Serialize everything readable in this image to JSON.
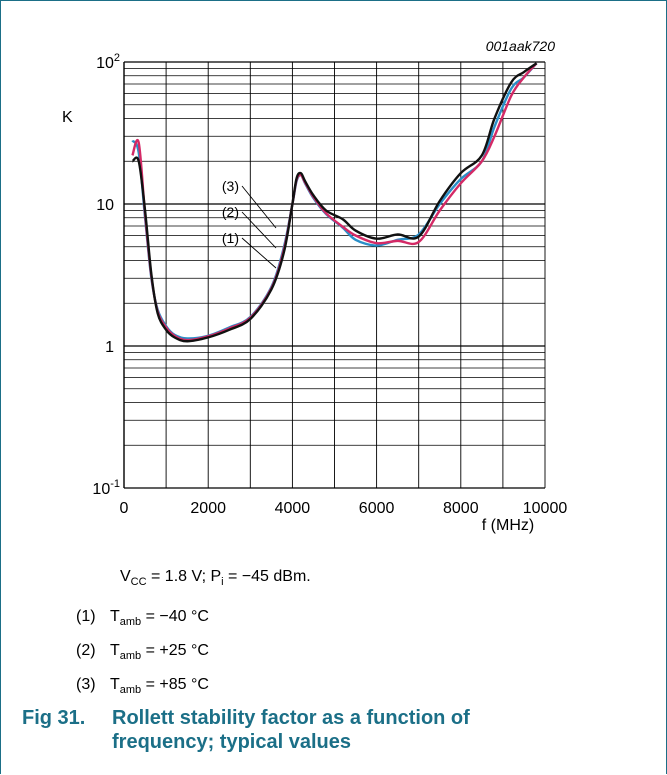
{
  "figure_id": "001aak720",
  "chart_data": {
    "type": "line",
    "ylabel": "K",
    "xlabel": "f (MHz)",
    "yscale": "log",
    "xlim": [
      0,
      10000
    ],
    "ylim": [
      0.1,
      100
    ],
    "x_ticks": [
      "0",
      "2000",
      "4000",
      "6000",
      "8000",
      "10000"
    ],
    "grid": true,
    "series": [
      {
        "name": "(1)",
        "color": "#2a8fc8",
        "x": [
          200,
          350,
          500,
          650,
          800,
          1000,
          1200,
          1500,
          2000,
          2500,
          3000,
          3500,
          3800,
          4000,
          4100,
          4200,
          4300,
          4500,
          4800,
          5200,
          5500,
          6000,
          6500,
          7000,
          7500,
          8000,
          8500,
          8800,
          9200,
          9500,
          9800
        ],
        "y": [
          28,
          23,
          8,
          3,
          1.8,
          1.38,
          1.2,
          1.13,
          1.18,
          1.35,
          1.6,
          2.6,
          5,
          10,
          14.5,
          16,
          14,
          11,
          8.5,
          6.8,
          5.6,
          5.1,
          5.6,
          6.1,
          10,
          15,
          20,
          35,
          65,
          78,
          98
        ]
      },
      {
        "name": "(2)",
        "color": "#d42a66",
        "x": [
          200,
          350,
          500,
          650,
          800,
          1000,
          1200,
          1500,
          2000,
          2500,
          3000,
          3500,
          3800,
          4000,
          4100,
          4200,
          4300,
          4500,
          4800,
          5200,
          5500,
          6000,
          6500,
          7000,
          7500,
          8000,
          8500,
          8800,
          9200,
          9500,
          9800
        ],
        "y": [
          22,
          27,
          8.5,
          3.1,
          1.75,
          1.35,
          1.18,
          1.1,
          1.17,
          1.33,
          1.58,
          2.55,
          4.8,
          10,
          14.8,
          16,
          14.2,
          11.2,
          8.6,
          6.9,
          6,
          5.3,
          5.5,
          5.4,
          9,
          14,
          20,
          30,
          58,
          78,
          98
        ]
      },
      {
        "name": "(3)",
        "color": "#111111",
        "x": [
          200,
          350,
          500,
          650,
          800,
          1000,
          1200,
          1500,
          2000,
          2500,
          3000,
          3500,
          3800,
          4000,
          4100,
          4200,
          4300,
          4500,
          4800,
          5200,
          5500,
          6000,
          6500,
          7000,
          7500,
          8000,
          8500,
          8800,
          9200,
          9500,
          9800
        ],
        "y": [
          20,
          20,
          9,
          3.2,
          1.7,
          1.3,
          1.15,
          1.08,
          1.15,
          1.3,
          1.55,
          2.5,
          4.6,
          10,
          15.2,
          16.5,
          14.5,
          11.5,
          9,
          7.8,
          6.5,
          5.7,
          6.1,
          5.9,
          10.5,
          16.5,
          22,
          40,
          72,
          85,
          98
        ]
      }
    ],
    "callouts": [
      "(3)",
      "(2)",
      "(1)"
    ]
  },
  "conditions": {
    "vcc_label": "V",
    "vcc_sub": "CC",
    "vcc_value": " = 1.8 V; P",
    "pi_sub": "i",
    "pi_value": " = −45 dBm."
  },
  "legend": [
    {
      "num": "(1)",
      "t": "T",
      "sub": "amb",
      "value": " = −40 °C"
    },
    {
      "num": "(2)",
      "t": "T",
      "sub": "amb",
      "value": " = +25 °C"
    },
    {
      "num": "(3)",
      "t": "T",
      "sub": "amb",
      "value": " = +85 °C"
    }
  ],
  "caption": {
    "label": "Fig 31.",
    "title": "Rollett stability factor as a function of frequency; typical values"
  }
}
